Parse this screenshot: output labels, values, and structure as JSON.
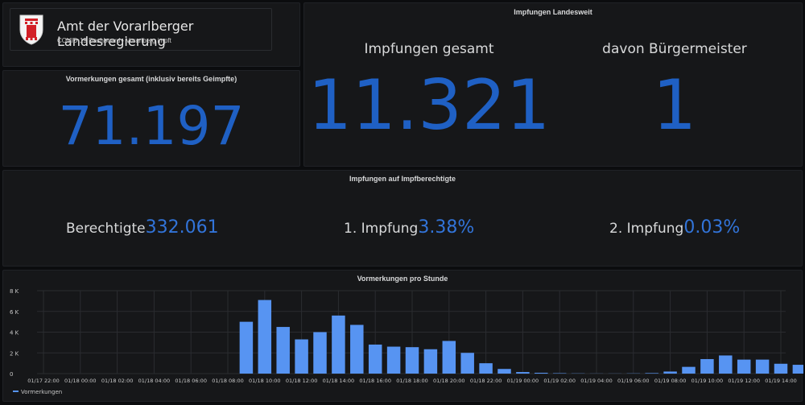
{
  "header": {
    "title": "Amt der Vorarlberger Landesregierung",
    "subtitle": "COVID-19 Dashboard - Vorarlberg impft"
  },
  "vormerkungen": {
    "title": "Vormerkungen gesamt (inklusiv bereits Geimpfte)",
    "value": "71.197"
  },
  "impfungen": {
    "title": "Impfungen Landesweit",
    "gesamt_label": "Impfungen gesamt",
    "gesamt_value": "11.321",
    "buergermeister_label": "davon Bürgermeister",
    "buergermeister_value": "1"
  },
  "berechtigte": {
    "title": "Impfungen auf Impfberechtigte",
    "berechtigte_label": "Berechtigte",
    "berechtigte_value": "332.061",
    "erste_label": "1. Impfung",
    "erste_value": "3.38%",
    "zweite_label": "2. Impfung",
    "zweite_value": "0.03%"
  },
  "colors": {
    "accent": "#1f60c4",
    "bar": "#5794f2",
    "background": "#161719"
  },
  "chart_data": {
    "type": "bar",
    "title": "Vormerkungen pro Stunde",
    "legend": "bottom-left",
    "grid": true,
    "ylim": [
      0,
      8000
    ],
    "y_ticks": [
      "0",
      "2 K",
      "4 K",
      "6 K",
      "8 K"
    ],
    "x_ticks": [
      "01/17 22:00",
      "01/18 00:00",
      "01/18 02:00",
      "01/18 04:00",
      "01/18 06:00",
      "01/18 08:00",
      "01/18 10:00",
      "01/18 12:00",
      "01/18 14:00",
      "01/18 16:00",
      "01/18 18:00",
      "01/18 20:00",
      "01/18 22:00",
      "01/19 00:00",
      "01/19 02:00",
      "01/19 04:00",
      "01/19 06:00",
      "01/19 08:00",
      "01/19 10:00",
      "01/19 12:00",
      "01/19 14:00"
    ],
    "series": [
      {
        "name": "Vormerkungen",
        "values": [
          0,
          0,
          0,
          0,
          0,
          0,
          0,
          0,
          0,
          0,
          0,
          0,
          5000,
          7100,
          4500,
          3300,
          4000,
          5600,
          4700,
          2800,
          2600,
          2550,
          2350,
          3150,
          2000,
          1000,
          450,
          150,
          80,
          40,
          20,
          10,
          10,
          20,
          50,
          200,
          650,
          1400,
          1750,
          1350,
          1350,
          950,
          850
        ]
      }
    ]
  }
}
